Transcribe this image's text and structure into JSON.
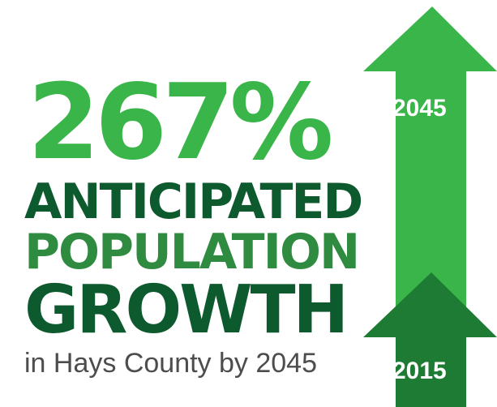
{
  "headline": {
    "percent": "267%",
    "line1": "ANTICIPATED",
    "line2": "POPULATION",
    "line3": "GROWTH"
  },
  "subline": "in Hays County by 2045",
  "years": {
    "future": "2045",
    "current": "2015"
  },
  "colors": {
    "bright_green": "#3ab54a",
    "dark_green": "#0d5a2e",
    "mid_green": "#2e8b3f",
    "arrow_tall": "#39b54a",
    "arrow_short": "#1e7b34",
    "gray_text": "#4d4d4d"
  }
}
